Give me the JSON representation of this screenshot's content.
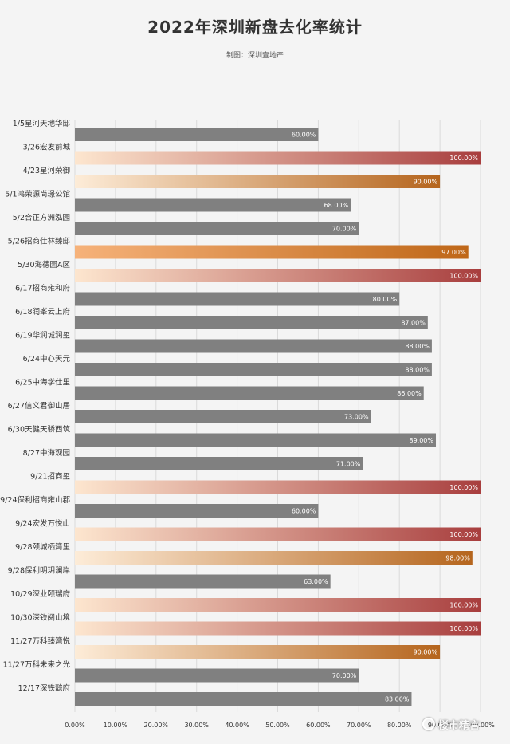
{
  "chart_data": {
    "type": "bar",
    "orientation": "horizontal",
    "title": "2022年深圳新盘去化率统计",
    "subtitle": "制图：深圳壹地产",
    "xlim": [
      0,
      1
    ],
    "x_ticks": [
      "0.00%",
      "10.00%",
      "20.00%",
      "30.00%",
      "40.00%",
      "50.00%",
      "60.00%",
      "70.00%",
      "80.00%",
      "90.00%",
      "100.00%"
    ],
    "grid": true,
    "categories": [
      "1/5星河天地华邸",
      "3/26宏发前城",
      "4/23星河荣御",
      "5/1鸿荣源尚璟公馆",
      "5/2合正方洲泓园",
      "5/26招商仕林臻邸",
      "5/30海德园A区",
      "6/17招商雍和府",
      "6/18润峯云上府",
      "6/19华润城润玺",
      "6/24中心天元",
      "6/25中海学仕里",
      "6/27信义君御山居",
      "6/30天健天骄西筑",
      "8/27中海观园",
      "9/21招商玺",
      "9/24保利招商雍山郡",
      "9/24宏发万悦山",
      "9/28颐城栖湾里",
      "9/28保利明玥澜岸",
      "10/29深业颐瑞府",
      "10/30深铁阅山境",
      "11/27万科臻湾悦",
      "11/27万科未来之光",
      "12/17深铁懿府"
    ],
    "values": [
      0.6,
      1.0,
      0.9,
      0.68,
      0.7,
      0.97,
      1.0,
      0.8,
      0.87,
      0.88,
      0.88,
      0.86,
      0.73,
      0.89,
      0.71,
      1.0,
      0.6,
      1.0,
      0.98,
      0.63,
      1.0,
      1.0,
      0.9,
      0.7,
      0.83
    ],
    "labels": [
      "60.00%",
      "100.00%",
      "90.00%",
      "68.00%",
      "70.00%",
      "97.00%",
      "100.00%",
      "80.00%",
      "87.00%",
      "88.00%",
      "88.00%",
      "86.00%",
      "73.00%",
      "89.00%",
      "71.00%",
      "100.00%",
      "60.00%",
      "100.00%",
      "98.00%",
      "63.00%",
      "100.00%",
      "100.00%",
      "90.00%",
      "70.00%",
      "83.00%"
    ],
    "colors": {
      "default_bar": "#808080",
      "full_gradient": [
        "#fde6cf",
        "#a83e3e"
      ],
      "high_gradient": [
        "#fdecd8",
        "#b5651d"
      ],
      "orange_gradient": [
        "#f6b27a",
        "#bf6718"
      ],
      "label": "#ffffff",
      "grid": "#dadada",
      "axis_text": "#333333"
    }
  },
  "watermark": {
    "text": "楼市精言"
  }
}
